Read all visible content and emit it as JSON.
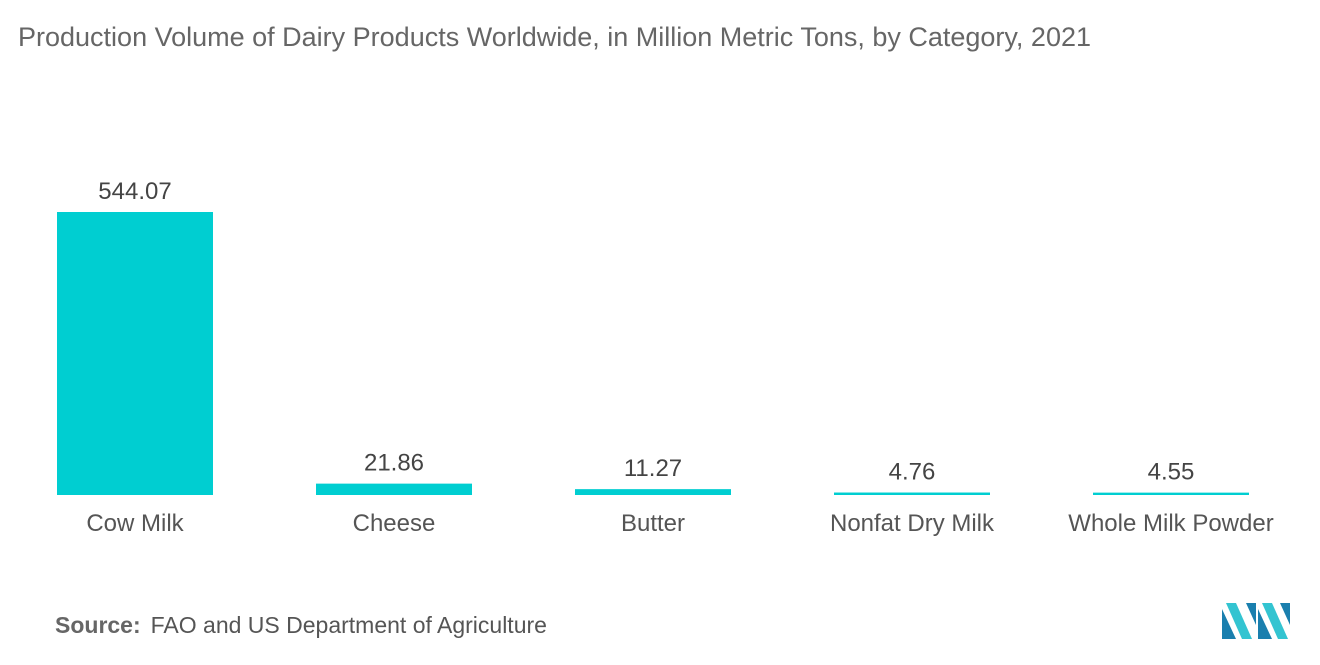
{
  "chart_data": {
    "type": "bar",
    "title": "Production Volume of Dairy Products Worldwide, in Million Metric Tons, by Category, 2021",
    "categories": [
      "Cow Milk",
      "Cheese",
      "Butter",
      "Nonfat Dry Milk",
      "Whole Milk Powder"
    ],
    "values": [
      544.07,
      21.86,
      11.27,
      4.76,
      4.55
    ],
    "value_labels": [
      "544.07",
      "21.86",
      "11.27",
      "4.76",
      "4.55"
    ],
    "xlabel": "",
    "ylabel": "",
    "ylim": [
      0,
      544.07
    ],
    "grid": false,
    "legend": "none",
    "bar_color": "#00CED1"
  },
  "source": {
    "label": "Source:",
    "text": "FAO and US Department of Agriculture"
  },
  "logo": {
    "icon": "mordor-intelligence-logo-icon",
    "colors": [
      "#1a7fae",
      "#33c4d1"
    ]
  }
}
